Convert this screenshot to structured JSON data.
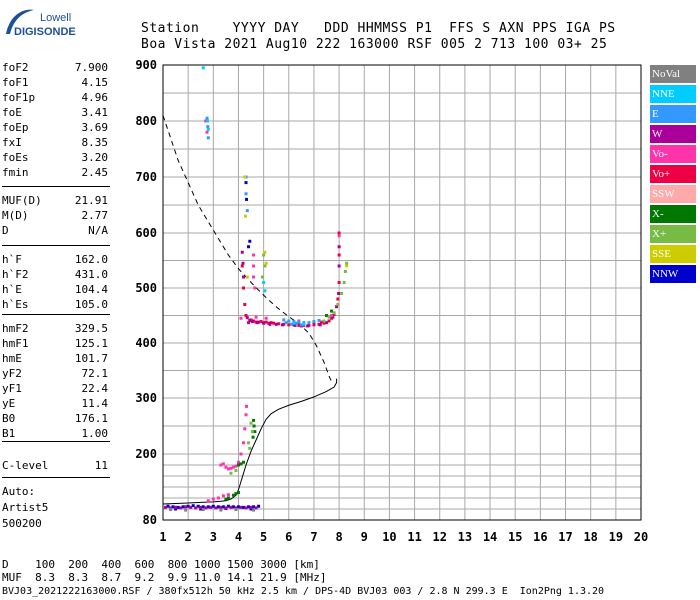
{
  "logo": {
    "line1": "Lowell",
    "line2": "DIGISONDE"
  },
  "header": {
    "row1": "Station    YYYY DAY   DDD HHMMSS P1  FFS S AXN PPS IGA PS",
    "row2": "Boa Vista 2021 Aug10 222 163000 RSF 005 2 713 100 03+ 25"
  },
  "params": [
    {
      "name": "foF2",
      "value": "7.900"
    },
    {
      "name": "foF1",
      "value": "4.15"
    },
    {
      "name": "foF1p",
      "value": "4.96"
    },
    {
      "name": "foE",
      "value": "3.41"
    },
    {
      "name": "foEp",
      "value": "3.69"
    },
    {
      "name": "fxI",
      "value": "8.35"
    },
    {
      "name": "foEs",
      "value": "3.20"
    },
    {
      "name": "fmin",
      "value": "2.45"
    },
    {
      "name": "MUF(D)",
      "value": "21.91"
    },
    {
      "name": "M(D)",
      "value": "2.77"
    },
    {
      "name": "D",
      "value": "N/A"
    },
    {
      "name": "h`F",
      "value": "162.0"
    },
    {
      "name": "h`F2",
      "value": "431.0"
    },
    {
      "name": "h`E",
      "value": "104.4"
    },
    {
      "name": "h`Es",
      "value": "105.0"
    },
    {
      "name": "hmF2",
      "value": "329.5"
    },
    {
      "name": "hmF1",
      "value": "125.1"
    },
    {
      "name": "hmE",
      "value": "101.7"
    },
    {
      "name": "yF2",
      "value": "72.1"
    },
    {
      "name": "yF1",
      "value": "22.4"
    },
    {
      "name": "yE",
      "value": "11.4"
    },
    {
      "name": "B0",
      "value": "176.1"
    },
    {
      "name": "B1",
      "value": "1.00"
    },
    {
      "name": "C-level",
      "value": "11"
    }
  ],
  "auto": {
    "line1": "Auto:",
    "line2": "Artist5",
    "line3": "500200"
  },
  "legend": [
    {
      "label": "NoVal",
      "color": "#808080"
    },
    {
      "label": "NNE",
      "color": "#00ccff"
    },
    {
      "label": "E",
      "color": "#3399ff"
    },
    {
      "label": "W",
      "color": "#aa0099"
    },
    {
      "label": "Vo-",
      "color": "#ff33aa"
    },
    {
      "label": "Vo+",
      "color": "#ee0044"
    },
    {
      "label": "SSW",
      "color": "#ffaaaa"
    },
    {
      "label": "X-",
      "color": "#007700"
    },
    {
      "label": "X+",
      "color": "#77bb44"
    },
    {
      "label": "SSE",
      "color": "#cccc00"
    },
    {
      "label": "NNW",
      "color": "#0000cc"
    }
  ],
  "bottom": {
    "d_row": "D    100  200  400  600  800 1000 1500 3000 [km]",
    "muf_row": "MUF  8.3  8.3  8.7  9.2  9.9 11.0 14.1 21.9 [MHz]",
    "footer": "BVJ03_2021222163000.RSF / 380fx512h 50 kHz 2.5 km / DPS-4D BVJ03 003 / 2.8 N 299.3 E  Ion2Png 1.3.20"
  },
  "chart_data": {
    "type": "scatter",
    "title": "",
    "xlabel": "",
    "ylabel": "",
    "xlim": [
      1,
      20
    ],
    "ylim": [
      80,
      900
    ],
    "x_ticks": [
      "1",
      "2",
      "3",
      "4",
      "5",
      "6",
      "7",
      "8",
      "9",
      "10",
      "11",
      "12",
      "13",
      "14",
      "15",
      "16",
      "17",
      "18",
      "19",
      "20"
    ],
    "y_ticks": [
      "80",
      "200",
      "300",
      "400",
      "500",
      "600",
      "700",
      "800",
      "900"
    ],
    "y_tick_values": [
      80,
      200,
      300,
      400,
      500,
      600,
      700,
      800,
      900
    ],
    "series": [
      {
        "legend_index": 5,
        "style": "dots",
        "points": [
          [
            4.4,
            437
          ],
          [
            4.6,
            440
          ],
          [
            4.8,
            438
          ],
          [
            5.0,
            437
          ],
          [
            5.2,
            436
          ],
          [
            5.4,
            436
          ],
          [
            5.6,
            435
          ],
          [
            5.8,
            434
          ],
          [
            6.0,
            433
          ],
          [
            6.2,
            433
          ],
          [
            6.4,
            432
          ],
          [
            6.6,
            432
          ],
          [
            6.8,
            432
          ],
          [
            7.0,
            433
          ],
          [
            7.2,
            434
          ],
          [
            7.4,
            436
          ],
          [
            7.6,
            440
          ],
          [
            7.8,
            452
          ],
          [
            7.95,
            480
          ],
          [
            8.0,
            510
          ],
          [
            8.0,
            560
          ],
          [
            8.0,
            600
          ],
          [
            4.3,
            450
          ],
          [
            4.25,
            470
          ],
          [
            4.2,
            500
          ],
          [
            4.15,
            540
          ],
          [
            4.5,
            442
          ],
          [
            4.7,
            438
          ],
          [
            4.9,
            439
          ],
          [
            5.1,
            438
          ],
          [
            5.3,
            437
          ],
          [
            7.0,
            436
          ],
          [
            7.3,
            438
          ],
          [
            7.7,
            445
          ]
        ]
      },
      {
        "legend_index": 3,
        "style": "dots",
        "points": [
          [
            4.35,
            446
          ],
          [
            4.45,
            441
          ],
          [
            4.55,
            439
          ],
          [
            4.75,
            437
          ],
          [
            5.0,
            436
          ],
          [
            5.25,
            434
          ],
          [
            5.5,
            434
          ],
          [
            5.75,
            433
          ],
          [
            6.25,
            432
          ],
          [
            6.5,
            431
          ],
          [
            6.75,
            431
          ],
          [
            7.25,
            433
          ],
          [
            7.5,
            437
          ],
          [
            7.75,
            447
          ],
          [
            7.9,
            466
          ],
          [
            7.98,
            490
          ],
          [
            8.0,
            540
          ],
          [
            8.0,
            575
          ],
          [
            4.2,
            520
          ],
          [
            4.18,
            545
          ],
          [
            4.15,
            565
          ]
        ]
      },
      {
        "legend_index": 4,
        "style": "dots",
        "points": [
          [
            3.3,
            180
          ],
          [
            3.5,
            176
          ],
          [
            3.7,
            174
          ],
          [
            3.9,
            178
          ],
          [
            4.0,
            185
          ],
          [
            4.1,
            200
          ],
          [
            4.2,
            220
          ],
          [
            4.25,
            245
          ],
          [
            4.3,
            270
          ],
          [
            4.32,
            285
          ],
          [
            3.4,
            182
          ],
          [
            3.6,
            173
          ],
          [
            3.8,
            176
          ],
          [
            4.6,
            520
          ],
          [
            4.6,
            540
          ],
          [
            4.6,
            560
          ],
          [
            4.65,
            500
          ],
          [
            2.8,
            115
          ],
          [
            3.0,
            118
          ],
          [
            3.2,
            120
          ],
          [
            3.4,
            124
          ],
          [
            3.6,
            126
          ],
          [
            4.1,
            445
          ],
          [
            4.7,
            447
          ],
          [
            5.1,
            445
          ],
          [
            6.4,
            440
          ],
          [
            7.7,
            450
          ],
          [
            8.0,
            595
          ],
          [
            2.7,
            800
          ],
          [
            2.75,
            780
          ]
        ]
      },
      {
        "legend_index": 2,
        "style": "dots",
        "points": [
          [
            2.75,
            805
          ],
          [
            2.78,
            790
          ],
          [
            2.8,
            770
          ],
          [
            4.3,
            700
          ],
          [
            4.3,
            670
          ],
          [
            4.35,
            640
          ],
          [
            5.8,
            442
          ],
          [
            6.0,
            440
          ],
          [
            6.2,
            439
          ],
          [
            6.4,
            438
          ],
          [
            6.6,
            437
          ],
          [
            6.8,
            437
          ],
          [
            7.0,
            439
          ],
          [
            7.2,
            441
          ],
          [
            6.1,
            434
          ],
          [
            6.5,
            433
          ],
          [
            5.9,
            437
          ],
          [
            6.3,
            436
          ]
        ]
      },
      {
        "legend_index": 1,
        "style": "dots",
        "points": [
          [
            2.6,
            895
          ],
          [
            2.77,
            800
          ],
          [
            2.8,
            785
          ],
          [
            6.2,
            436
          ],
          [
            6.6,
            434
          ],
          [
            5.0,
            510
          ],
          [
            5.05,
            495
          ]
        ]
      },
      {
        "legend_index": 7,
        "style": "dots",
        "points": [
          [
            4.6,
            260
          ],
          [
            4.62,
            250
          ],
          [
            4.65,
            240
          ],
          [
            4.58,
            230
          ],
          [
            4.0,
            180
          ],
          [
            4.1,
            182
          ],
          [
            4.2,
            185
          ],
          [
            3.8,
            125
          ],
          [
            3.9,
            128
          ],
          [
            4.0,
            130
          ],
          [
            3.5,
            118
          ],
          [
            3.6,
            120
          ],
          [
            7.5,
            450
          ],
          [
            7.7,
            458
          ]
        ]
      },
      {
        "legend_index": 8,
        "style": "dots",
        "points": [
          [
            4.5,
            255
          ],
          [
            4.55,
            240
          ],
          [
            4.4,
            220
          ],
          [
            4.45,
            210
          ],
          [
            3.9,
            170
          ],
          [
            3.7,
            165
          ],
          [
            7.4,
            440
          ],
          [
            7.6,
            447
          ],
          [
            7.8,
            455
          ],
          [
            7.95,
            470
          ],
          [
            8.1,
            490
          ],
          [
            8.2,
            510
          ],
          [
            8.25,
            530
          ],
          [
            8.3,
            545
          ],
          [
            5.0,
            560
          ],
          [
            5.05,
            540
          ],
          [
            4.95,
            520
          ]
        ]
      },
      {
        "legend_index": 9,
        "style": "dots",
        "points": [
          [
            4.25,
            700
          ],
          [
            4.28,
            630
          ],
          [
            5.05,
            565
          ],
          [
            5.1,
            545
          ],
          [
            4.35,
            520
          ],
          [
            8.3,
            540
          ]
        ]
      },
      {
        "legend_index": 10,
        "style": "dots",
        "points": [
          [
            4.3,
            690
          ],
          [
            4.32,
            660
          ],
          [
            4.45,
            585
          ],
          [
            4.4,
            575
          ],
          [
            1.2,
            105
          ],
          [
            1.4,
            104
          ],
          [
            1.6,
            103
          ],
          [
            1.8,
            104
          ],
          [
            2.0,
            105
          ],
          [
            2.2,
            106
          ],
          [
            2.4,
            105
          ],
          [
            2.6,
            104
          ],
          [
            2.8,
            104
          ],
          [
            3.0,
            105
          ],
          [
            3.2,
            104
          ],
          [
            3.4,
            104
          ],
          [
            3.6,
            105
          ],
          [
            3.8,
            104
          ],
          [
            4.0,
            104
          ],
          [
            4.2,
            103
          ],
          [
            4.4,
            104
          ],
          [
            4.6,
            104
          ],
          [
            4.8,
            105
          ],
          [
            1.5,
            100
          ],
          [
            2.5,
            100
          ],
          [
            3.5,
            101
          ],
          [
            4.5,
            100
          ]
        ]
      },
      {
        "legend_index": 3,
        "style": "dots",
        "points": [
          [
            1.1,
            103
          ],
          [
            1.3,
            102
          ],
          [
            1.5,
            103
          ],
          [
            1.7,
            102
          ],
          [
            1.9,
            104
          ],
          [
            2.1,
            103
          ],
          [
            2.3,
            102
          ],
          [
            2.5,
            103
          ],
          [
            2.7,
            102
          ],
          [
            2.9,
            103
          ],
          [
            3.1,
            102
          ],
          [
            3.3,
            103
          ],
          [
            3.5,
            102
          ],
          [
            3.7,
            103
          ],
          [
            3.9,
            102
          ],
          [
            4.1,
            103
          ],
          [
            4.3,
            102
          ],
          [
            4.5,
            103
          ],
          [
            4.7,
            102
          ]
        ]
      },
      {
        "legend_index": 0,
        "style": "dots",
        "points": [
          [
            1.3,
            99
          ],
          [
            1.9,
            98
          ],
          [
            2.6,
            99
          ],
          [
            3.3,
            98
          ],
          [
            3.9,
            99
          ],
          [
            4.6,
            98
          ]
        ]
      }
    ],
    "profile": [
      [
        1.0,
        109
      ],
      [
        1.5,
        110
      ],
      [
        2.0,
        111
      ],
      [
        2.5,
        112
      ],
      [
        3.0,
        113
      ],
      [
        3.3,
        114
      ],
      [
        3.5,
        115
      ],
      [
        3.7,
        118
      ],
      [
        3.9,
        125
      ],
      [
        4.0,
        135
      ],
      [
        4.1,
        150
      ],
      [
        4.2,
        165
      ],
      [
        4.3,
        180
      ],
      [
        4.5,
        205
      ],
      [
        4.7,
        225
      ],
      [
        4.9,
        245
      ],
      [
        5.1,
        262
      ],
      [
        5.3,
        272
      ],
      [
        5.6,
        280
      ],
      [
        6.0,
        287
      ],
      [
        6.5,
        294
      ],
      [
        7.0,
        302
      ],
      [
        7.5,
        312
      ],
      [
        7.8,
        320
      ],
      [
        7.9,
        328
      ],
      [
        7.9,
        335
      ]
    ],
    "dashed_profile": [
      [
        1.0,
        810
      ],
      [
        1.3,
        770
      ],
      [
        1.6,
        730
      ],
      [
        2.0,
        690
      ],
      [
        2.4,
        650
      ],
      [
        2.8,
        620
      ],
      [
        3.2,
        590
      ],
      [
        3.6,
        560
      ],
      [
        4.0,
        535
      ],
      [
        4.4,
        515
      ],
      [
        4.8,
        496
      ],
      [
        5.2,
        478
      ],
      [
        5.6,
        462
      ],
      [
        6.0,
        448
      ],
      [
        6.4,
        435
      ],
      [
        6.8,
        418
      ],
      [
        7.1,
        395
      ],
      [
        7.4,
        365
      ],
      [
        7.6,
        340
      ],
      [
        7.7,
        330
      ]
    ]
  }
}
